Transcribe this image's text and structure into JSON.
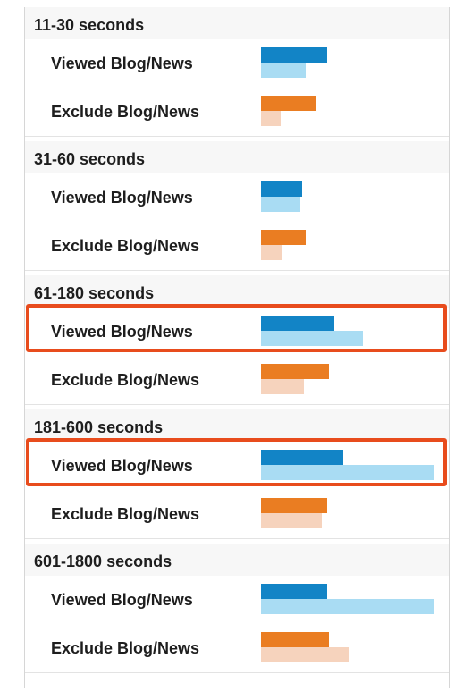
{
  "chart_data": {
    "type": "bar",
    "orientation": "horizontal",
    "groups": [
      {
        "title": "11-30 seconds",
        "rows": [
          {
            "label": "Viewed Blog/News",
            "kind": "viewed",
            "values": [
              37,
              25
            ],
            "highlighted": false
          },
          {
            "label": "Exclude Blog/News",
            "kind": "exclude",
            "values": [
              31,
              11
            ],
            "highlighted": false
          }
        ]
      },
      {
        "title": "31-60 seconds",
        "rows": [
          {
            "label": "Viewed Blog/News",
            "kind": "viewed",
            "values": [
              23,
              22
            ],
            "highlighted": false
          },
          {
            "label": "Exclude Blog/News",
            "kind": "exclude",
            "values": [
              25,
              12
            ],
            "highlighted": false
          }
        ]
      },
      {
        "title": "61-180 seconds",
        "rows": [
          {
            "label": "Viewed Blog/News",
            "kind": "viewed",
            "values": [
              41,
              57
            ],
            "highlighted": true
          },
          {
            "label": "Exclude Blog/News",
            "kind": "exclude",
            "values": [
              38,
              24
            ],
            "highlighted": false
          }
        ]
      },
      {
        "title": "181-600 seconds",
        "rows": [
          {
            "label": "Viewed Blog/News",
            "kind": "viewed",
            "values": [
              46,
              97
            ],
            "highlighted": true
          },
          {
            "label": "Exclude Blog/News",
            "kind": "exclude",
            "values": [
              37,
              34
            ],
            "highlighted": false
          }
        ]
      },
      {
        "title": "601-1800 seconds",
        "rows": [
          {
            "label": "Viewed Blog/News",
            "kind": "viewed",
            "values": [
              37,
              97
            ],
            "highlighted": false
          },
          {
            "label": "Exclude Blog/News",
            "kind": "exclude",
            "values": [
              38,
              49
            ],
            "highlighted": false
          }
        ]
      }
    ],
    "xlim": [
      0,
      100
    ],
    "grid": false,
    "colors": {
      "viewed_dark": "#1284c6",
      "viewed_light": "#a9dcf3",
      "exclude_dark": "#ea7d22",
      "exclude_light": "#f6d3bd",
      "highlight": "#e84c1d"
    }
  }
}
